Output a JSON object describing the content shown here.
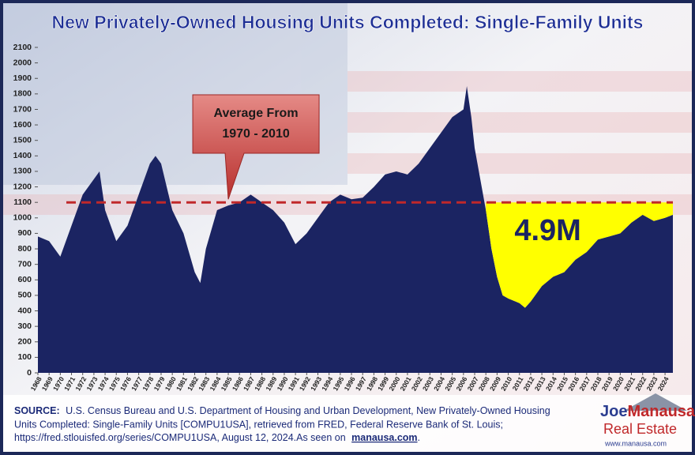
{
  "chart_data": {
    "type": "area",
    "title": "New Privately-Owned Housing Units Completed: Single-Family Units",
    "x": [
      1968,
      1969,
      1970,
      1971,
      1972,
      1973,
      1973.5,
      1974,
      1975,
      1976,
      1977,
      1978,
      1978.5,
      1979,
      1980,
      1981,
      1982,
      1982.5,
      1983,
      1984,
      1985,
      1986,
      1987,
      1988,
      1989,
      1990,
      1991,
      1992,
      1993,
      1994,
      1995,
      1996,
      1997,
      1998,
      1999,
      2000,
      2001,
      2002,
      2003,
      2004,
      2005,
      2006,
      2006.3,
      2006.7,
      2007,
      2007.5,
      2008,
      2008.5,
      2009,
      2009.5,
      2010,
      2011,
      2011.5,
      2012,
      2013,
      2014,
      2015,
      2016,
      2017,
      2018,
      2019,
      2020,
      2021,
      2022,
      2023,
      2024,
      2024.7
    ],
    "values": [
      880,
      850,
      750,
      950,
      1150,
      1250,
      1300,
      1050,
      850,
      950,
      1150,
      1350,
      1400,
      1350,
      1050,
      900,
      650,
      580,
      800,
      1050,
      1080,
      1100,
      1150,
      1100,
      1050,
      970,
      830,
      900,
      1000,
      1100,
      1150,
      1120,
      1130,
      1200,
      1280,
      1300,
      1280,
      1350,
      1450,
      1550,
      1650,
      1700,
      1850,
      1650,
      1450,
      1250,
      1050,
      800,
      620,
      500,
      480,
      450,
      420,
      460,
      560,
      620,
      650,
      730,
      780,
      860,
      880,
      900,
      970,
      1020,
      980,
      1000,
      1020
    ],
    "color": "#1b2462",
    "xlim": [
      1968,
      2024.7
    ],
    "xticks": [
      1968,
      1969,
      1970,
      1971,
      1972,
      1973,
      1974,
      1975,
      1976,
      1977,
      1978,
      1979,
      1980,
      1981,
      1982,
      1983,
      1984,
      1985,
      1986,
      1987,
      1988,
      1989,
      1990,
      1991,
      1992,
      1993,
      1994,
      1995,
      1996,
      1997,
      1998,
      1999,
      2000,
      2001,
      2002,
      2003,
      2004,
      2005,
      2006,
      2007,
      2008,
      2009,
      2010,
      2011,
      2012,
      2013,
      2014,
      2015,
      2016,
      2017,
      2018,
      2019,
      2020,
      2021,
      2022,
      2023,
      2024
    ],
    "ylim": [
      0,
      2100
    ],
    "yticks": [
      0,
      100,
      200,
      300,
      400,
      500,
      600,
      700,
      800,
      900,
      1000,
      1100,
      1200,
      1300,
      1400,
      1500,
      1600,
      1700,
      1800,
      1900,
      2000,
      2100
    ],
    "average": {
      "value": 1100,
      "color": "#c0282a",
      "lines": [
        "Average From",
        "1970 - 2010"
      ],
      "x": 1985
    },
    "shortfall": {
      "from": 2008,
      "color": "#ffff00",
      "label": "4.9M"
    },
    "source": {
      "label": "SOURCE:",
      "lines": [
        "U.S. Census Bureau and U.S. Department of Housing and Urban Development, New Privately-Owned Housing",
        "Units Completed: Single-Family Units [COMPU1USA], retrieved from FRED, Federal Reserve Bank of St. Louis;",
        "https://fred.stlouisfed.org/series/COMPU1USA, August 12, 2024.As seen on"
      ],
      "link": "manausa.com",
      "end": "."
    },
    "logo": {
      "first": "Joe",
      "last": "Manausa",
      "sub": "Real Estate",
      "url": "www.manausa.com"
    }
  }
}
